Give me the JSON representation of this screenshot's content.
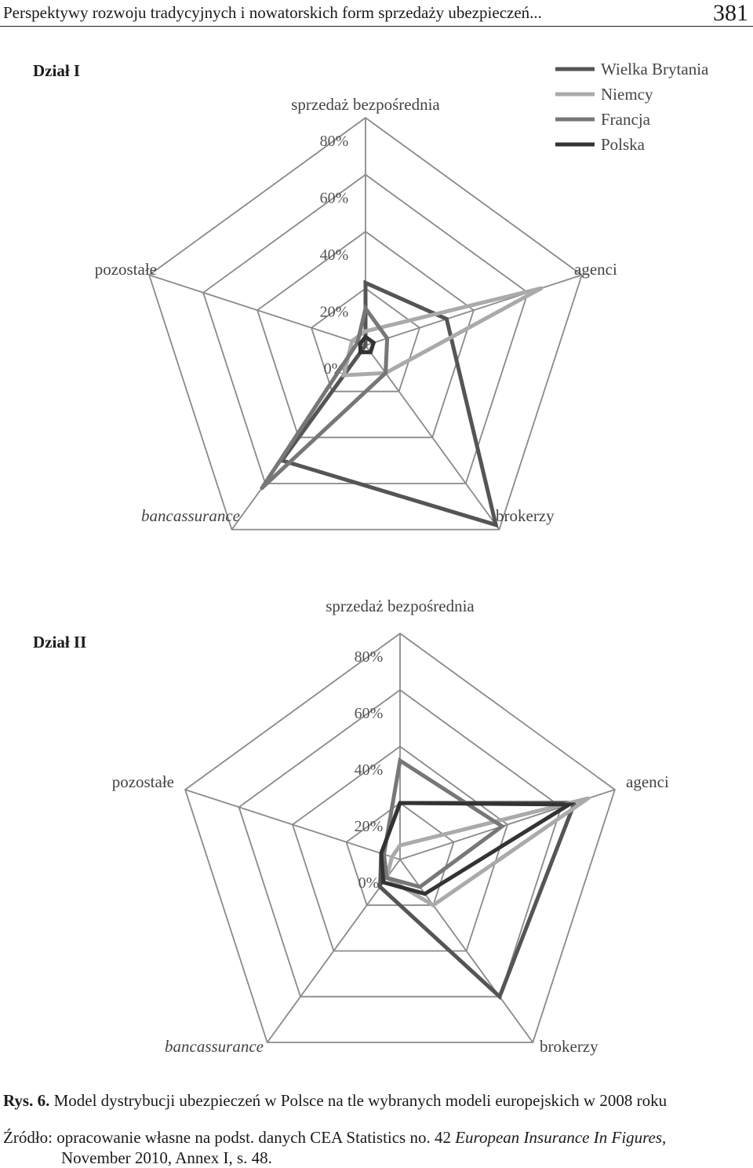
{
  "header": {
    "running_title": "Perspektywy rozwoju tradycyjnych i nowatorskich form sprzedaży ubezpieczeń...",
    "page_number": "381"
  },
  "chart_data": [
    {
      "type": "radar",
      "section_label": "Dział  I",
      "axes": [
        "sprzedaż bezpośrednia",
        "agenci",
        "brokerzy",
        "bancassurance",
        "pozostałe"
      ],
      "tick_labels": [
        "0%",
        "20%",
        "40%",
        "60%",
        "80%"
      ],
      "rmax": 80,
      "grid": true,
      "legend_placement": "top-right",
      "series": [
        {
          "name": "Wielka Brytania",
          "values": [
            22,
            30,
            78,
            50,
            0
          ],
          "color": "#555555"
        },
        {
          "name": "Niemcy",
          "values": [
            5,
            65,
            12,
            13,
            5
          ],
          "color": "#aaaaaa"
        },
        {
          "name": "Francja",
          "values": [
            13,
            8,
            12,
            62,
            3
          ],
          "color": "#777777"
        },
        {
          "name": "Polska",
          "values": [
            3,
            3,
            3,
            3,
            2
          ],
          "color": "#333333"
        }
      ]
    },
    {
      "type": "radar",
      "section_label": "Dział II",
      "axes": [
        "sprzedaż bezpośrednia",
        "agenci",
        "brokerzy",
        "bancassurance",
        "pozostałe"
      ],
      "tick_labels": [
        "0%",
        "20%",
        "40%",
        "60%",
        "80%"
      ],
      "rmax": 80,
      "grid": true,
      "legend_placement": "none",
      "series": [
        {
          "name": "Wielka Brytania",
          "values": [
            20,
            65,
            60,
            12,
            7
          ],
          "color": "#555555"
        },
        {
          "name": "Niemcy",
          "values": [
            5,
            70,
            20,
            8,
            3
          ],
          "color": "#aaaaaa"
        },
        {
          "name": "Francja",
          "values": [
            35,
            38,
            12,
            8,
            6
          ],
          "color": "#777777"
        },
        {
          "name": "Polska",
          "values": [
            20,
            63,
            15,
            10,
            7
          ],
          "color": "#333333"
        }
      ]
    }
  ],
  "caption": {
    "label": "Rys. 6.",
    "text": " Model dystrybucji ubezpieczeń w Polsce na tle wybranych modeli europejskich w 2008 roku"
  },
  "source": {
    "prefix": "Źródło: opracowanie własne na podst. danych CEA Statistics no. 42 ",
    "title": "European Insurance In Figures",
    "suffix": ",",
    "line2": "November 2010, Annex I, s. 48."
  }
}
